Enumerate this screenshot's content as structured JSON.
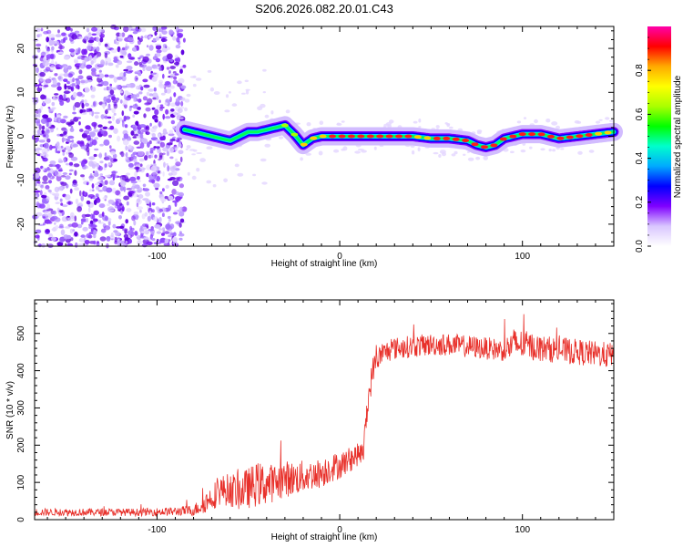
{
  "figure_title": "S206.2026.082.20.01.C43",
  "chart_data": [
    {
      "type": "heatmap",
      "title": "S206.2026.082.20.01.C43",
      "xlabel": "Height of straight line (km)",
      "ylabel": "Frequency (Hz)",
      "xlim": [
        -167,
        150
      ],
      "ylim": [
        -25,
        25
      ],
      "x_ticks": [
        -100,
        0,
        100
      ],
      "y_ticks": [
        -20,
        -10,
        0,
        10,
        20
      ],
      "x_tick_labels": [
        "-100",
        "0",
        "100"
      ],
      "y_tick_labels": [
        "-20",
        "-10",
        "0",
        "10",
        "20"
      ],
      "ridge": {
        "x": [
          -85,
          -80,
          -75,
          -70,
          -65,
          -60,
          -55,
          -50,
          -45,
          -40,
          -35,
          -30,
          -25,
          -20,
          -15,
          -10,
          -5,
          0,
          10,
          20,
          30,
          40,
          50,
          60,
          70,
          75,
          80,
          85,
          90,
          100,
          110,
          120,
          130,
          140,
          150
        ],
        "freq": [
          1.5,
          1.0,
          0.5,
          0.0,
          -0.5,
          -1.0,
          0.0,
          1.0,
          1.0,
          1.5,
          2.0,
          2.5,
          0.5,
          -2.0,
          -0.5,
          0.0,
          0.0,
          0.0,
          0.0,
          0.0,
          0.0,
          0.0,
          -0.5,
          -0.5,
          -1.0,
          -2.0,
          -2.5,
          -2.0,
          -0.5,
          0.5,
          0.5,
          -0.5,
          0.0,
          0.5,
          1.0
        ],
        "amplitude": [
          0.25,
          0.2,
          0.2,
          0.2,
          0.3,
          0.3,
          0.35,
          0.4,
          0.45,
          0.5,
          0.6,
          0.65,
          0.7,
          0.7,
          0.75,
          0.8,
          0.85,
          0.9,
          0.95,
          0.9,
          0.9,
          0.85,
          0.85,
          0.9,
          0.9,
          0.95,
          0.95,
          0.9,
          0.85,
          0.95,
          0.95,
          0.9,
          0.9,
          0.85,
          0.85
        ]
      },
      "noise_region_x": [
        -167,
        -85
      ],
      "colorbar": {
        "label": "Normalized spectral amplitude",
        "range": [
          0.0,
          1.0
        ],
        "ticks": [
          0.0,
          0.2,
          0.4,
          0.6,
          0.8
        ],
        "tick_labels": [
          "0.0",
          "0.2",
          "0.4",
          "0.6",
          "0.8"
        ],
        "colors": [
          "#ffffff",
          "#d9c6ff",
          "#7f00ff",
          "#0000ff",
          "#00aaff",
          "#00ffcc",
          "#00ff00",
          "#aaff00",
          "#ffff00",
          "#ffaa00",
          "#ff0000",
          "#ff00aa"
        ]
      }
    },
    {
      "type": "line",
      "title": "",
      "xlabel": "Height of straight line (km)",
      "ylabel": "SNR (10 * v/v)",
      "xlim": [
        -167,
        150
      ],
      "ylim": [
        0,
        590
      ],
      "x_ticks": [
        -100,
        0,
        100
      ],
      "y_ticks": [
        0,
        100,
        200,
        300,
        400,
        500
      ],
      "x_tick_labels": [
        "-100",
        "0",
        "100"
      ],
      "y_tick_labels": [
        "0",
        "100",
        "200",
        "300",
        "400",
        "500"
      ],
      "color": "#e8302a",
      "x": [
        -167,
        -150,
        -130,
        -110,
        -90,
        -80,
        -75,
        -70,
        -65,
        -60,
        -55,
        -50,
        -45,
        -40,
        -35,
        -30,
        -25,
        -20,
        -15,
        -10,
        -5,
        0,
        5,
        10,
        13,
        15,
        18,
        20,
        25,
        30,
        40,
        50,
        60,
        70,
        80,
        90,
        95,
        100,
        110,
        120,
        130,
        140,
        150
      ],
      "mean": [
        20,
        20,
        20,
        20,
        22,
        25,
        40,
        60,
        80,
        80,
        75,
        85,
        95,
        95,
        100,
        110,
        110,
        115,
        120,
        125,
        140,
        145,
        160,
        175,
        180,
        300,
        400,
        430,
        450,
        460,
        465,
        470,
        470,
        465,
        460,
        455,
        470,
        470,
        460,
        455,
        450,
        445,
        440
      ],
      "spread": [
        10,
        10,
        10,
        10,
        12,
        15,
        25,
        35,
        40,
        45,
        50,
        55,
        60,
        55,
        50,
        50,
        45,
        45,
        40,
        40,
        40,
        35,
        35,
        30,
        30,
        40,
        35,
        30,
        30,
        30,
        30,
        30,
        30,
        30,
        30,
        30,
        45,
        40,
        35,
        35,
        35,
        35,
        35
      ]
    }
  ]
}
